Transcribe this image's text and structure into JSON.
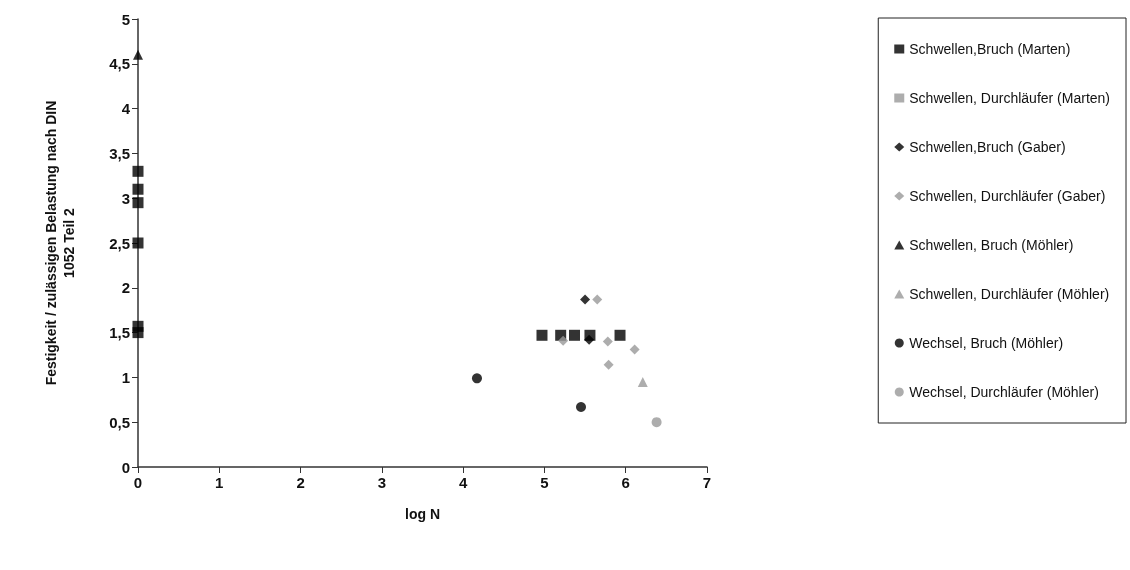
{
  "chart_data": {
    "type": "scatter",
    "xlabel": "log N",
    "ylabel": "Festigkeit / zulässigen Belastung nach DIN\n1052 Teil 2",
    "xlim": [
      0,
      7
    ],
    "xticks": [
      0,
      1,
      2,
      3,
      4,
      5,
      6,
      7
    ],
    "ylim": [
      0,
      5
    ],
    "yticks": [
      0,
      {
        "value": 0.5,
        "label": "0,5"
      },
      1,
      {
        "value": 1.5,
        "label": "1,5"
      },
      2,
      {
        "value": 2.5,
        "label": "2,5"
      },
      3,
      {
        "value": 3.5,
        "label": "3,5"
      },
      4,
      {
        "value": 4.5,
        "label": "4,5"
      },
      5
    ],
    "grid": false,
    "legend": "right",
    "series": [
      {
        "name": "Schwellen,Bruch (Marten)",
        "color": "#000000",
        "marker": "square",
        "x": [
          0,
          0,
          0,
          0,
          0,
          0,
          4.97,
          5.2,
          5.37,
          5.56,
          5.93
        ],
        "values": [
          1.5,
          1.57,
          2.5,
          2.95,
          3.1,
          3.3,
          1.47,
          1.47,
          1.47,
          1.47,
          1.47
        ]
      },
      {
        "name": "Schwellen, Durchläufer (Marten)",
        "color": "#999999",
        "marker": "square"
      },
      {
        "name": "Schwellen,Bruch (Gaber)",
        "color": "#000000",
        "marker": "diamond",
        "x": [
          5.5,
          5.55
        ],
        "values": [
          1.87,
          1.42
        ]
      },
      {
        "name": "Schwellen, Durchläufer (Gaber)",
        "color": "#999999",
        "marker": "diamond",
        "x": [
          5.65,
          5.23,
          5.78,
          5.79,
          6.11
        ],
        "values": [
          1.87,
          1.41,
          1.4,
          1.14,
          1.31
        ]
      },
      {
        "name": "Schwellen, Bruch (Möhler)",
        "color": "#000000",
        "marker": "triangle",
        "x": [
          0
        ],
        "values": [
          4.6
        ]
      },
      {
        "name": "Schwellen, Durchläufer (Möhler)",
        "color": "#999999",
        "marker": "triangle",
        "x": [
          6.21
        ],
        "values": [
          0.95
        ]
      },
      {
        "name": "Wechsel, Bruch (Möhler)",
        "color": "#000000",
        "marker": "circle",
        "x": [
          4.17,
          5.45
        ],
        "values": [
          0.99,
          0.67
        ]
      },
      {
        "name": "Wechsel, Durchläufer (Möhler)",
        "color": "#999999",
        "marker": "circle",
        "x": [
          6.38
        ],
        "values": [
          0.5
        ]
      }
    ]
  }
}
